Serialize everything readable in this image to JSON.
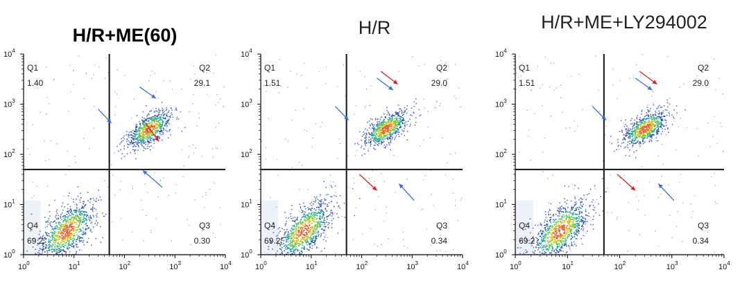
{
  "chart_data": [
    {
      "type": "scatter",
      "title": "H/R+ME(60)",
      "xlabel": "",
      "ylabel": "",
      "xscale": "log",
      "yscale": "log",
      "xlim": [
        1,
        10000
      ],
      "ylim": [
        1,
        10000
      ],
      "x_ticks": [
        "10^0",
        "10^1",
        "10^2",
        "10^3",
        "10^4"
      ],
      "y_ticks": [
        "10^0",
        "10^1",
        "10^2",
        "10^3",
        "10^4"
      ],
      "gate": {
        "x": 50,
        "y": 50
      },
      "quadrants": [
        {
          "name": "Q1",
          "percent": "1.40"
        },
        {
          "name": "Q2",
          "percent": "29.1"
        },
        {
          "name": "Q3",
          "percent": "0.30"
        },
        {
          "name": "Q4",
          "percent": "69.2"
        }
      ],
      "clusters": [
        {
          "cx": 7,
          "cy": 3,
          "sx": 0.28,
          "sy": 0.28,
          "n": 900
        },
        {
          "cx": 300,
          "cy": 320,
          "sx": 0.22,
          "sy": 0.17,
          "n": 700
        }
      ],
      "arrows": [
        {
          "color": "#3a6fd8",
          "from": [
            200,
            2200
          ],
          "to": [
            420,
            1300
          ]
        },
        {
          "color": "#3a6fd8",
          "from": [
            30,
            800
          ],
          "to": [
            55,
            420
          ]
        },
        {
          "color": "#d62020",
          "from": [
            260,
            420
          ],
          "to": [
            480,
            180
          ]
        },
        {
          "color": "#3a6fd8",
          "from": [
            560,
            22
          ],
          "to": [
            230,
            48
          ]
        }
      ]
    },
    {
      "type": "scatter",
      "title": "H/R",
      "xlabel": "",
      "ylabel": "",
      "xscale": "log",
      "yscale": "log",
      "xlim": [
        1,
        10000
      ],
      "ylim": [
        1,
        10000
      ],
      "x_ticks": [
        "10^0",
        "10^1",
        "10^2",
        "10^3",
        "10^4"
      ],
      "y_ticks": [
        "10^0",
        "10^1",
        "10^2",
        "10^3",
        "10^4"
      ],
      "gate": {
        "x": 50,
        "y": 50
      },
      "quadrants": [
        {
          "name": "Q1",
          "percent": "1.51"
        },
        {
          "name": "Q2",
          "percent": "29.0"
        },
        {
          "name": "Q3",
          "percent": "0.34"
        },
        {
          "name": "Q4",
          "percent": "69.2"
        }
      ],
      "clusters": [
        {
          "cx": 7,
          "cy": 3,
          "sx": 0.28,
          "sy": 0.28,
          "n": 900
        },
        {
          "cx": 300,
          "cy": 330,
          "sx": 0.22,
          "sy": 0.17,
          "n": 700
        }
      ],
      "arrows": [
        {
          "color": "#d62020",
          "from": [
            240,
            4500
          ],
          "to": [
            520,
            2500
          ]
        },
        {
          "color": "#3a6fd8",
          "from": [
            200,
            3300
          ],
          "to": [
            420,
            1900
          ]
        },
        {
          "color": "#3a6fd8",
          "from": [
            30,
            900
          ],
          "to": [
            55,
            480
          ]
        },
        {
          "color": "#d62020",
          "from": [
            90,
            40
          ],
          "to": [
            200,
            19
          ]
        },
        {
          "color": "#3a6fd8",
          "from": [
            1100,
            12
          ],
          "to": [
            550,
            26
          ]
        }
      ]
    },
    {
      "type": "scatter",
      "title": "H/R+ME+LY294002",
      "xlabel": "",
      "ylabel": "",
      "xscale": "log",
      "yscale": "log",
      "xlim": [
        1,
        10000
      ],
      "ylim": [
        1,
        10000
      ],
      "x_ticks": [
        "10^0",
        "10^1",
        "10^2",
        "10^3",
        "10^4"
      ],
      "y_ticks": [
        "10^0",
        "10^1",
        "10^2",
        "10^3",
        "10^4"
      ],
      "gate": {
        "x": 50,
        "y": 50
      },
      "quadrants": [
        {
          "name": "Q1",
          "percent": "1.51"
        },
        {
          "name": "Q2",
          "percent": "29.0"
        },
        {
          "name": "Q3",
          "percent": "0.34"
        },
        {
          "name": "Q4",
          "percent": "69.2"
        }
      ],
      "clusters": [
        {
          "cx": 7,
          "cy": 3,
          "sx": 0.28,
          "sy": 0.28,
          "n": 900
        },
        {
          "cx": 300,
          "cy": 330,
          "sx": 0.22,
          "sy": 0.17,
          "n": 700
        }
      ],
      "arrows": [
        {
          "color": "#d62020",
          "from": [
            240,
            4500
          ],
          "to": [
            520,
            2500
          ]
        },
        {
          "color": "#3a6fd8",
          "from": [
            200,
            3300
          ],
          "to": [
            420,
            1900
          ]
        },
        {
          "color": "#3a6fd8",
          "from": [
            30,
            900
          ],
          "to": [
            55,
            480
          ]
        },
        {
          "color": "#d62020",
          "from": [
            90,
            40
          ],
          "to": [
            200,
            19
          ]
        },
        {
          "color": "#3a6fd8",
          "from": [
            1100,
            12
          ],
          "to": [
            550,
            26
          ]
        }
      ]
    }
  ]
}
